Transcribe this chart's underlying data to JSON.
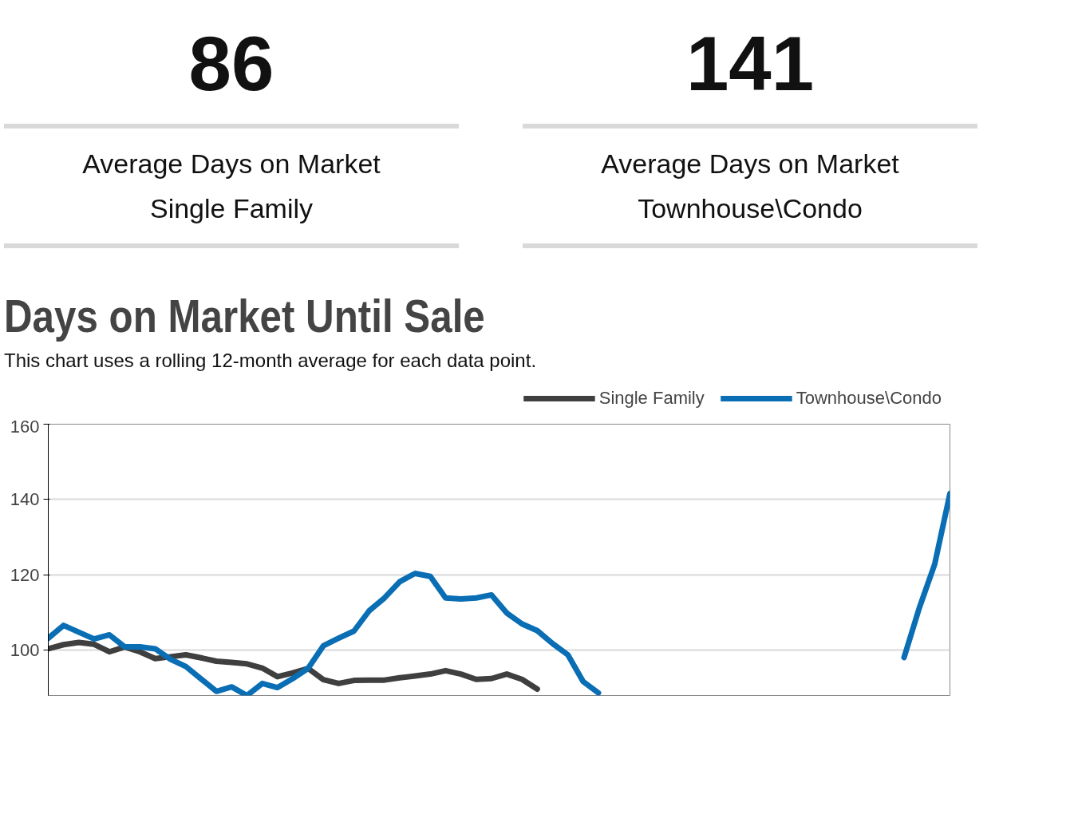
{
  "chart_data": {
    "type": "line",
    "title": "Days on Market Until Sale",
    "subtitle": "This chart uses a rolling 12-month average for each data point.",
    "annotations": [
      "86",
      "Average Days on Market",
      "Single Family",
      "141",
      "Average Days on Market",
      "Townhouse\\Condo"
    ],
    "categories": [
      null,
      null,
      null,
      null,
      null,
      null,
      null,
      null,
      null,
      null,
      null,
      null,
      null,
      null,
      null,
      null,
      null,
      null,
      null,
      null,
      null,
      null,
      null,
      null,
      null,
      null,
      null,
      null,
      null,
      null,
      null,
      null,
      null,
      null,
      null,
      null,
      null,
      null,
      null,
      null,
      null,
      null,
      null,
      null,
      null,
      null,
      null,
      null,
      null,
      null,
      null,
      null,
      null,
      null,
      null,
      null,
      null,
      null,
      null,
      null
    ],
    "ylim": [
      88,
      160
    ],
    "yticks": [
      100,
      120,
      140,
      160
    ],
    "tick_labels": "y",
    "grid": "y",
    "legend": "top right",
    "line_style": "solid",
    "marker": "none",
    "series": [
      {
        "name": "Single Family",
        "color": "#3f3f3f",
        "values": [
          100.4,
          101.5,
          102.1,
          101.6,
          99.6,
          100.9,
          99.6,
          97.8,
          98.3,
          98.8,
          98,
          97.1,
          96.8,
          96.4,
          95.3,
          93,
          94,
          95.2,
          92.2,
          91.2,
          92,
          92.1,
          92.1,
          92.7,
          93.2,
          93.7,
          94.6,
          93.7,
          92.3,
          92.5,
          93.7,
          92.3,
          89.7,
          null,
          null,
          null,
          null,
          null,
          null,
          null,
          null,
          null,
          null,
          null,
          null,
          null,
          null,
          null,
          null,
          null,
          null,
          null,
          null,
          null,
          null,
          null,
          null,
          null,
          null,
          null
        ]
      },
      {
        "name": "Townhouse\\Condo",
        "color": "#0a6eb4",
        "values": [
          103.2,
          106.6,
          104.8,
          103,
          104.1,
          100.9,
          100.9,
          100.4,
          97.6,
          95.7,
          92.4,
          89.1,
          90.3,
          88,
          91.2,
          90.1,
          92.5,
          95.2,
          101.2,
          103.2,
          105.1,
          110.5,
          113.9,
          118.2,
          120.4,
          119.6,
          113.9,
          113.6,
          113.9,
          114.7,
          109.9,
          107,
          105.2,
          101.8,
          98.8,
          91.7,
          88.7,
          null,
          null,
          null,
          null,
          null,
          null,
          null,
          null,
          null,
          null,
          null,
          null,
          null,
          null,
          null,
          null,
          null,
          null,
          null,
          null,
          null,
          null,
          null
        ]
      },
      {
        "color": "#0a6eb4",
        "values": [
          null,
          null,
          null,
          null,
          null,
          null,
          null,
          null,
          null,
          null,
          null,
          null,
          null,
          null,
          null,
          null,
          null,
          null,
          null,
          null,
          null,
          null,
          null,
          null,
          null,
          null,
          null,
          null,
          null,
          null,
          null,
          null,
          null,
          null,
          null,
          null,
          null,
          null,
          null,
          null,
          null,
          null,
          null,
          null,
          null,
          null,
          null,
          null,
          null,
          null,
          null,
          null,
          null,
          null,
          null,
          null,
          98.1,
          111.3,
          122.8,
          141.6
        ]
      }
    ]
  }
}
